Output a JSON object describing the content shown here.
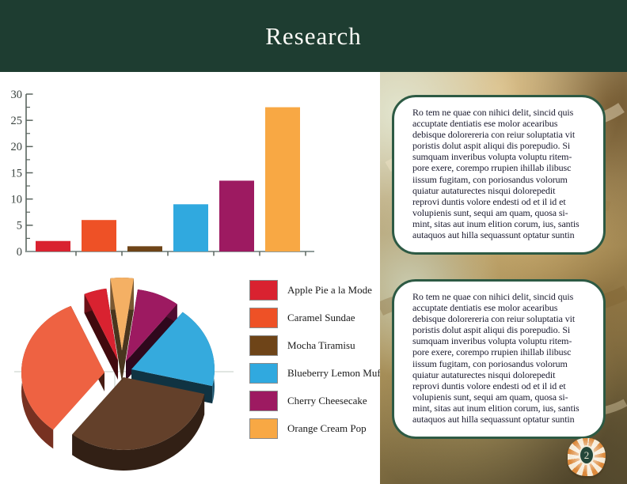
{
  "header": {
    "title": "Research",
    "bg_color": "#1e3d31"
  },
  "colors": {
    "accent_green_border": "#2d5a44",
    "header_green": "#1e3d31",
    "axis": "#5a655f",
    "baseline": "#909c9a",
    "tick_label": "#39423e",
    "gridline": "#c3cdc4",
    "series": [
      "#d92230",
      "#ee5126",
      "#6e4418",
      "#30a9df",
      "#9d1a61",
      "#f8a844"
    ]
  },
  "chart_data": [
    {
      "type": "bar",
      "title": "",
      "categories": [
        "Apple Pie a la Mode",
        "Caramel Sundae",
        "Mocha Tiramisu",
        "Blueberry Lemon Muffin",
        "Cherry Cheesecake",
        "Orange Cream Pop"
      ],
      "values": [
        2,
        6,
        1,
        9,
        13.5,
        27.5
      ],
      "colors": [
        "#d92230",
        "#ee5126",
        "#6e4418",
        "#30a9df",
        "#9d1a61",
        "#f8a844"
      ],
      "xlabel": "",
      "ylabel": "",
      "ylim": [
        0,
        30
      ],
      "yticks": [
        0,
        5,
        10,
        15,
        20,
        25,
        30
      ],
      "grid": false,
      "legend_position": "none"
    },
    {
      "type": "pie",
      "style": "3d-exploded",
      "labels": [
        "Apple Pie a la Mode",
        "Caramel Sundae",
        "Mocha Tiramisu",
        "Blueberry Lemon Muffin",
        "Cherry Cheesecake",
        "Orange Cream Pop"
      ],
      "values_percent": [
        4.4,
        32.8,
        31.9,
        18.1,
        8.3,
        4.5
      ],
      "colors": [
        "#d92230",
        "#ee6242",
        "#63402a",
        "#35aadd",
        "#9d1a61",
        "#f4b064"
      ],
      "legend_position": "right"
    }
  ],
  "legend": {
    "items": [
      {
        "label": "Apple Pie a la Mode",
        "color": "#d92230"
      },
      {
        "label": "Caramel Sundae",
        "color": "#ee5126"
      },
      {
        "label": "Mocha Tiramisu",
        "color": "#6e4418"
      },
      {
        "label": "Blueberry Lemon Muffin",
        "color": "#30a9df"
      },
      {
        "label": "Cherry Cheesecake",
        "color": "#9d1a61"
      },
      {
        "label": "Orange Cream Pop",
        "color": "#f8a844"
      }
    ]
  },
  "text_boxes": [
    {
      "lines": [
        "Ro tem ne quae con nihici delit, sincid quis",
        "accuptate dentiatis ese molor acearibus",
        "debisque dolorereria con reiur soluptatia vit",
        "poristis dolut aspit aliqui dis porepudio. Si",
        "sumquam inveribus volupta voluptu ritem-",
        "pore exere, corempo rrupien ihillab ilibusc",
        "iissum fugitam, con poriosandus volorum",
        "quiatur autaturectes nisqui dolorepedit",
        "reprovi duntis volore endesti od et il id et",
        "volupienis sunt, sequi am quam, quosa si-",
        "mint, sitas aut inum elition corum, ius, santis",
        "autaquos aut hilla sequassunt optatur suntin"
      ]
    },
    {
      "lines": [
        "Ro tem ne quae con nihici delit, sincid quis",
        "accuptate dentiatis ese molor acearibus",
        "debisque dolorereria con reiur soluptatia vit",
        "poristis dolut aspit aliqui dis porepudio. Si",
        "sumquam inveribus volupta voluptu ritem-",
        "pore exere, corempo rrupien ihillab ilibusc",
        "iissum fugitam, con poriosandus volorum",
        "quiatur autaturectes nisqui dolorepedit",
        "reprovi duntis volore endesti od et il id et",
        "volupienis sunt, sequi am quam, quosa si-",
        "mint, sitas aut inum elition corum, ius, santis",
        "autaquos aut hilla sequassunt optatur suntin"
      ]
    }
  ],
  "footer": {
    "page_number": "2",
    "badge_icon": "sundae-swirl-icon"
  }
}
